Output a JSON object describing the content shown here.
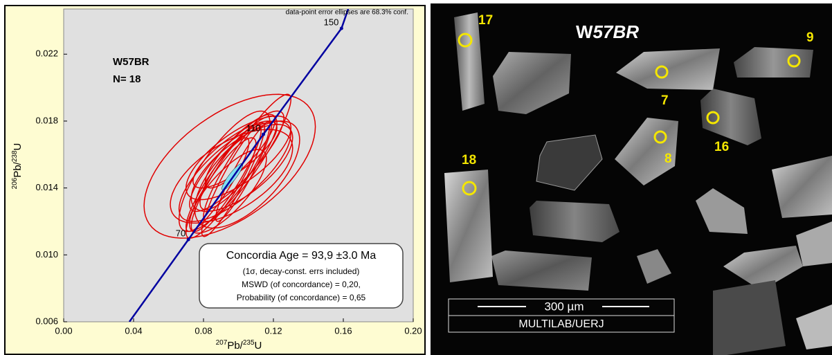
{
  "chart_data": {
    "type": "concordia",
    "note": "data-point error ellipses are 68.3% conf.",
    "sample": "W57BR",
    "n_label": "N= 18",
    "xlabel": [
      "207",
      "Pb/",
      "235",
      "U"
    ],
    "ylabel": [
      "206",
      "Pb/",
      "238",
      "U"
    ],
    "xlim": [
      0,
      0.2
    ],
    "ylim": [
      0.006,
      0.0247
    ],
    "xticks": [
      {
        "value": 0,
        "label": "0.00"
      },
      0.04,
      0.08,
      0.12,
      0.16,
      {
        "value": 0.2,
        "label": "0.20"
      }
    ],
    "yticks": [
      0.006,
      {
        "value": 0.01,
        "label": "0.010"
      },
      0.014,
      0.018,
      0.022
    ],
    "concordia": {
      "color": "#0000a0",
      "x": [
        0.0376,
        0.07137,
        0.11427,
        0.15895,
        0.1628
      ],
      "y": [
        0.006,
        0.010918,
        0.017209,
        0.02354,
        0.0247
      ]
    },
    "age_marks": {
      "x": [
        0.07137,
        0.11427,
        0.15895
      ],
      "y": [
        0.010918,
        0.017209,
        0.02354
      ],
      "labels": [
        "70",
        "110",
        "150"
      ]
    },
    "ellipses": {
      "color": "#e00000",
      "x": [
        0.095,
        0.105,
        0.098,
        0.1,
        0.093,
        0.102,
        0.09,
        0.098,
        0.105,
        0.092,
        0.097,
        0.101,
        0.094,
        0.099,
        0.088,
        0.103,
        0.096,
        0.1
      ],
      "y": [
        0.0153,
        0.0158,
        0.015,
        0.0155,
        0.0146,
        0.0152,
        0.014,
        0.016,
        0.0148,
        0.015,
        0.0145,
        0.0162,
        0.0138,
        0.0156,
        0.0142,
        0.015,
        0.0147,
        0.0158
      ],
      "x_err": [
        0.049,
        0.025,
        0.032,
        0.022,
        0.02,
        0.029,
        0.02,
        0.024,
        0.03,
        0.026,
        0.018,
        0.02,
        0.022,
        0.027,
        0.018,
        0.016,
        0.035,
        0.03
      ],
      "y_err": [
        0.0043,
        0.0038,
        0.003,
        0.0028,
        0.0032,
        0.0026,
        0.003,
        0.002,
        0.0032,
        0.0036,
        0.0034,
        0.0022,
        0.0025,
        0.003,
        0.0028,
        0.003,
        0.0028,
        0.0025
      ],
      "rho": [
        0.55,
        0.92,
        0.75,
        0.85,
        0.9,
        0.7,
        0.88,
        0.8,
        0.65,
        0.8,
        0.92,
        0.85,
        0.78,
        0.86,
        0.9,
        0.93,
        0.6,
        0.72
      ]
    },
    "age_ellipse": {
      "color": "#80e0f0",
      "x": 0.0965,
      "y": 0.01467,
      "x_err": 0.006,
      "y_err": 0.0008,
      "rho": 0.9
    },
    "result_box": [
      "Concordia Age = 93,9 ±3.0 Ma",
      "(1σ, decay-const. errs included)",
      "MSWD (of concordance) = 0,20,",
      "Probability (of concordance) = 0,65"
    ]
  },
  "image": {
    "title": [
      "W",
      "57BR"
    ],
    "spots": [
      "17",
      "9",
      "7",
      "8",
      "16",
      "18"
    ],
    "scale_bar": "300 µm",
    "lab": "MULTILAB/UERJ"
  }
}
